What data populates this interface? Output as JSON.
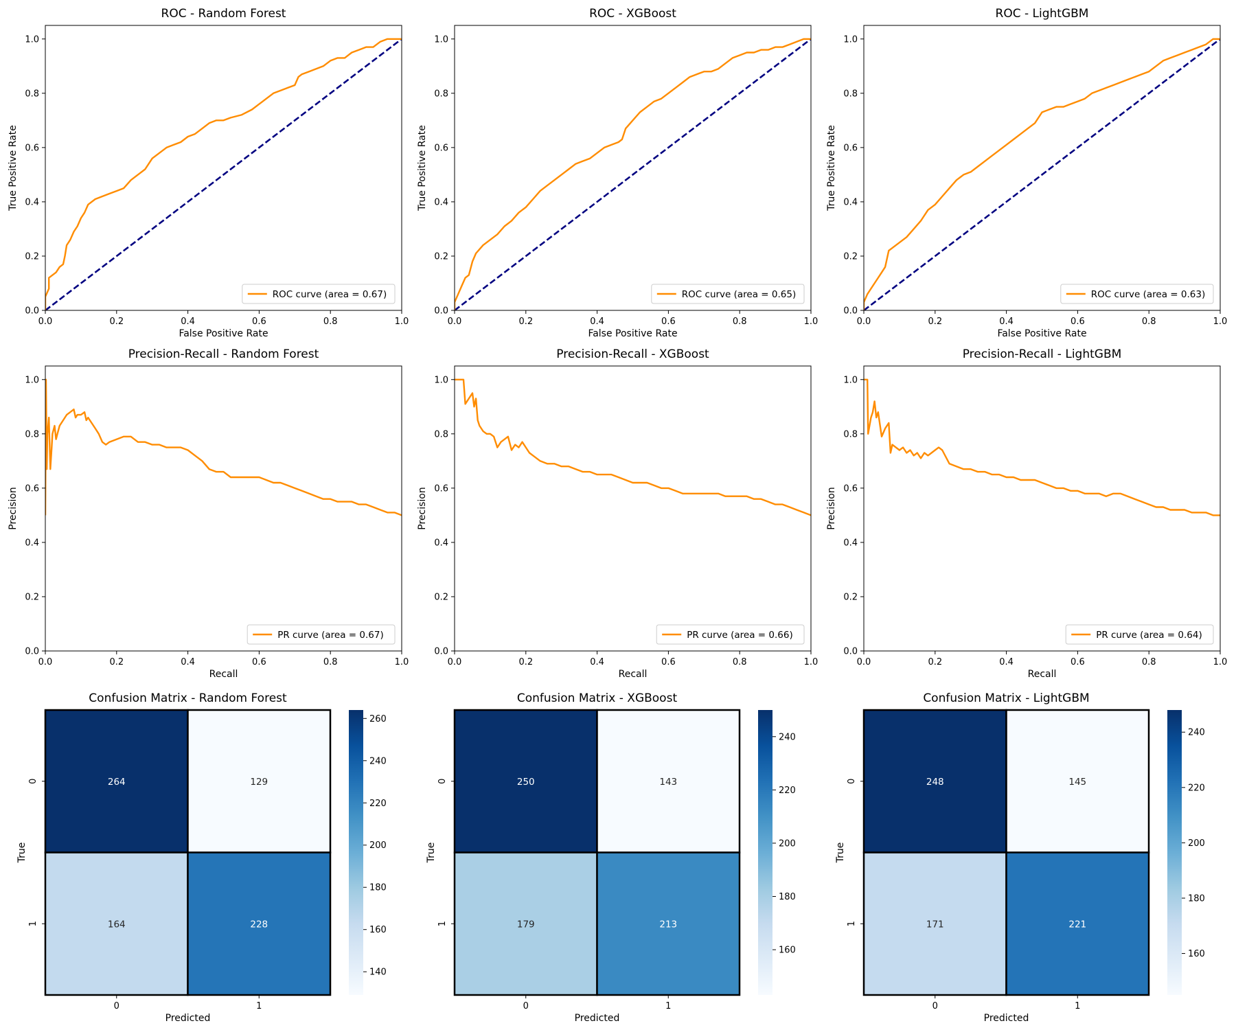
{
  "colors": {
    "curve": "#ff8c00",
    "diagonal": "#000080",
    "cmap": [
      "#f7fbff",
      "#deebf7",
      "#c6dbef",
      "#9ecae1",
      "#6baed6",
      "#4292c6",
      "#2171b5",
      "#08519c",
      "#08306b"
    ],
    "dark_text": "#262626",
    "light_text": "#ffffff"
  },
  "chart_data": [
    {
      "type": "line",
      "title": "ROC - Random Forest",
      "xlabel": "False Positive Rate",
      "ylabel": "True Positive Rate",
      "xlim": [
        0,
        1
      ],
      "ylim": [
        0,
        1.05
      ],
      "xticks": [
        "0.0",
        "0.2",
        "0.4",
        "0.6",
        "0.8",
        "1.0"
      ],
      "yticks": [
        "0.0",
        "0.2",
        "0.4",
        "0.6",
        "0.8",
        "1.0"
      ],
      "legend": "ROC curve (area = 0.67)",
      "legend_loc": "lower-right",
      "diagonal": true,
      "series": [
        {
          "x": [
            0,
            0,
            0.01,
            0.01,
            0.03,
            0.04,
            0.05,
            0.055,
            0.06,
            0.07,
            0.08,
            0.09,
            0.1,
            0.11,
            0.12,
            0.14,
            0.16,
            0.18,
            0.2,
            0.22,
            0.24,
            0.25,
            0.26,
            0.28,
            0.3,
            0.32,
            0.34,
            0.36,
            0.38,
            0.4,
            0.42,
            0.44,
            0.46,
            0.48,
            0.5,
            0.52,
            0.55,
            0.58,
            0.6,
            0.62,
            0.64,
            0.66,
            0.68,
            0.7,
            0.71,
            0.72,
            0.74,
            0.76,
            0.78,
            0.8,
            0.82,
            0.84,
            0.86,
            0.88,
            0.9,
            0.92,
            0.94,
            0.96,
            0.98,
            1.0
          ],
          "y": [
            0,
            0.05,
            0.08,
            0.12,
            0.14,
            0.16,
            0.17,
            0.2,
            0.24,
            0.26,
            0.29,
            0.31,
            0.34,
            0.36,
            0.39,
            0.41,
            0.42,
            0.43,
            0.44,
            0.45,
            0.48,
            0.49,
            0.5,
            0.52,
            0.56,
            0.58,
            0.6,
            0.61,
            0.62,
            0.64,
            0.65,
            0.67,
            0.69,
            0.7,
            0.7,
            0.71,
            0.72,
            0.74,
            0.76,
            0.78,
            0.8,
            0.81,
            0.82,
            0.83,
            0.86,
            0.87,
            0.88,
            0.89,
            0.9,
            0.92,
            0.93,
            0.93,
            0.95,
            0.96,
            0.97,
            0.97,
            0.99,
            1.0,
            1.0,
            1.0
          ]
        }
      ]
    },
    {
      "type": "line",
      "title": "ROC - XGBoost",
      "xlabel": "False Positive Rate",
      "ylabel": "True Positive Rate",
      "xlim": [
        0,
        1
      ],
      "ylim": [
        0,
        1.05
      ],
      "xticks": [
        "0.0",
        "0.2",
        "0.4",
        "0.6",
        "0.8",
        "1.0"
      ],
      "yticks": [
        "0.0",
        "0.2",
        "0.4",
        "0.6",
        "0.8",
        "1.0"
      ],
      "legend": "ROC curve (area = 0.65)",
      "legend_loc": "lower-right",
      "diagonal": true,
      "series": [
        {
          "x": [
            0,
            0,
            0.01,
            0.02,
            0.03,
            0.04,
            0.05,
            0.06,
            0.08,
            0.1,
            0.12,
            0.14,
            0.16,
            0.18,
            0.2,
            0.22,
            0.24,
            0.26,
            0.28,
            0.3,
            0.32,
            0.34,
            0.36,
            0.38,
            0.4,
            0.42,
            0.44,
            0.46,
            0.47,
            0.48,
            0.5,
            0.52,
            0.54,
            0.56,
            0.58,
            0.6,
            0.62,
            0.64,
            0.66,
            0.68,
            0.7,
            0.72,
            0.74,
            0.76,
            0.78,
            0.8,
            0.82,
            0.84,
            0.86,
            0.88,
            0.9,
            0.92,
            0.94,
            0.96,
            0.98,
            1.0
          ],
          "y": [
            0,
            0.03,
            0.06,
            0.09,
            0.12,
            0.13,
            0.18,
            0.21,
            0.24,
            0.26,
            0.28,
            0.31,
            0.33,
            0.36,
            0.38,
            0.41,
            0.44,
            0.46,
            0.48,
            0.5,
            0.52,
            0.54,
            0.55,
            0.56,
            0.58,
            0.6,
            0.61,
            0.62,
            0.63,
            0.67,
            0.7,
            0.73,
            0.75,
            0.77,
            0.78,
            0.8,
            0.82,
            0.84,
            0.86,
            0.87,
            0.88,
            0.88,
            0.89,
            0.91,
            0.93,
            0.94,
            0.95,
            0.95,
            0.96,
            0.96,
            0.97,
            0.97,
            0.98,
            0.99,
            1.0,
            1.0
          ]
        }
      ]
    },
    {
      "type": "line",
      "title": "ROC - LightGBM",
      "xlabel": "False Positive Rate",
      "ylabel": "True Positive Rate",
      "xlim": [
        0,
        1
      ],
      "ylim": [
        0,
        1.05
      ],
      "xticks": [
        "0.0",
        "0.2",
        "0.4",
        "0.6",
        "0.8",
        "1.0"
      ],
      "yticks": [
        "0.0",
        "0.2",
        "0.4",
        "0.6",
        "0.8",
        "1.0"
      ],
      "legend": "ROC curve (area = 0.63)",
      "legend_loc": "lower-right",
      "diagonal": true,
      "series": [
        {
          "x": [
            0,
            0,
            0.01,
            0.02,
            0.03,
            0.04,
            0.05,
            0.06,
            0.07,
            0.08,
            0.1,
            0.12,
            0.14,
            0.16,
            0.18,
            0.2,
            0.22,
            0.24,
            0.26,
            0.28,
            0.3,
            0.32,
            0.34,
            0.36,
            0.38,
            0.4,
            0.42,
            0.44,
            0.46,
            0.48,
            0.5,
            0.52,
            0.54,
            0.56,
            0.58,
            0.6,
            0.62,
            0.64,
            0.66,
            0.68,
            0.7,
            0.72,
            0.74,
            0.76,
            0.78,
            0.8,
            0.82,
            0.84,
            0.86,
            0.88,
            0.9,
            0.92,
            0.94,
            0.96,
            0.98,
            1.0
          ],
          "y": [
            0,
            0.03,
            0.06,
            0.08,
            0.1,
            0.12,
            0.14,
            0.16,
            0.22,
            0.23,
            0.25,
            0.27,
            0.3,
            0.33,
            0.37,
            0.39,
            0.42,
            0.45,
            0.48,
            0.5,
            0.51,
            0.53,
            0.55,
            0.57,
            0.59,
            0.61,
            0.63,
            0.65,
            0.67,
            0.69,
            0.73,
            0.74,
            0.75,
            0.75,
            0.76,
            0.77,
            0.78,
            0.8,
            0.81,
            0.82,
            0.83,
            0.84,
            0.85,
            0.86,
            0.87,
            0.88,
            0.9,
            0.92,
            0.93,
            0.94,
            0.95,
            0.96,
            0.97,
            0.98,
            1.0,
            1.0
          ]
        }
      ]
    },
    {
      "type": "line",
      "title": "Precision-Recall - Random Forest",
      "xlabel": "Recall",
      "ylabel": "Precision",
      "xlim": [
        0,
        1
      ],
      "ylim": [
        0,
        1.05
      ],
      "xticks": [
        "0.0",
        "0.2",
        "0.4",
        "0.6",
        "0.8",
        "1.0"
      ],
      "yticks": [
        "0.0",
        "0.2",
        "0.4",
        "0.6",
        "0.8",
        "1.0"
      ],
      "legend": "PR curve (area = 0.67)",
      "legend_loc": "lower-right",
      "diagonal": false,
      "series": [
        {
          "x": [
            0,
            0.002,
            0.004,
            0.006,
            0.01,
            0.014,
            0.018,
            0.02,
            0.026,
            0.03,
            0.034,
            0.04,
            0.05,
            0.06,
            0.07,
            0.08,
            0.085,
            0.09,
            0.1,
            0.11,
            0.115,
            0.12,
            0.13,
            0.14,
            0.15,
            0.16,
            0.17,
            0.18,
            0.2,
            0.22,
            0.24,
            0.26,
            0.28,
            0.3,
            0.32,
            0.34,
            0.36,
            0.38,
            0.4,
            0.42,
            0.44,
            0.46,
            0.48,
            0.5,
            0.52,
            0.54,
            0.56,
            0.58,
            0.6,
            0.62,
            0.64,
            0.66,
            0.68,
            0.7,
            0.72,
            0.74,
            0.76,
            0.78,
            0.8,
            0.82,
            0.84,
            0.86,
            0.88,
            0.9,
            0.92,
            0.94,
            0.96,
            0.98,
            1.0
          ],
          "y": [
            0.5,
            1.0,
            0.67,
            0.8,
            0.86,
            0.67,
            0.75,
            0.8,
            0.83,
            0.78,
            0.8,
            0.83,
            0.85,
            0.87,
            0.88,
            0.89,
            0.86,
            0.87,
            0.87,
            0.88,
            0.85,
            0.86,
            0.84,
            0.82,
            0.8,
            0.77,
            0.76,
            0.77,
            0.78,
            0.79,
            0.79,
            0.77,
            0.77,
            0.76,
            0.76,
            0.75,
            0.75,
            0.75,
            0.74,
            0.72,
            0.7,
            0.67,
            0.66,
            0.66,
            0.64,
            0.64,
            0.64,
            0.64,
            0.64,
            0.63,
            0.62,
            0.62,
            0.61,
            0.6,
            0.59,
            0.58,
            0.57,
            0.56,
            0.56,
            0.55,
            0.55,
            0.55,
            0.54,
            0.54,
            0.53,
            0.52,
            0.51,
            0.51,
            0.5
          ]
        }
      ]
    },
    {
      "type": "line",
      "title": "Precision-Recall - XGBoost",
      "xlabel": "Recall",
      "ylabel": "Precision",
      "xlim": [
        0,
        1
      ],
      "ylim": [
        0,
        1.05
      ],
      "xticks": [
        "0.0",
        "0.2",
        "0.4",
        "0.6",
        "0.8",
        "1.0"
      ],
      "yticks": [
        "0.0",
        "0.2",
        "0.4",
        "0.6",
        "0.8",
        "1.0"
      ],
      "legend": "PR curve (area = 0.66)",
      "legend_loc": "lower-right",
      "diagonal": false,
      "series": [
        {
          "x": [
            0,
            0.025,
            0.03,
            0.04,
            0.05,
            0.055,
            0.06,
            0.065,
            0.07,
            0.08,
            0.09,
            0.1,
            0.11,
            0.12,
            0.13,
            0.15,
            0.16,
            0.17,
            0.18,
            0.19,
            0.2,
            0.21,
            0.22,
            0.24,
            0.26,
            0.28,
            0.3,
            0.32,
            0.34,
            0.36,
            0.38,
            0.4,
            0.42,
            0.44,
            0.46,
            0.48,
            0.5,
            0.52,
            0.54,
            0.56,
            0.58,
            0.6,
            0.62,
            0.64,
            0.66,
            0.68,
            0.7,
            0.72,
            0.74,
            0.76,
            0.78,
            0.8,
            0.82,
            0.84,
            0.86,
            0.88,
            0.9,
            0.92,
            0.94,
            0.96,
            0.98,
            1.0
          ],
          "y": [
            1.0,
            1.0,
            0.91,
            0.93,
            0.95,
            0.9,
            0.93,
            0.85,
            0.83,
            0.81,
            0.8,
            0.8,
            0.79,
            0.75,
            0.77,
            0.79,
            0.74,
            0.76,
            0.75,
            0.77,
            0.75,
            0.73,
            0.72,
            0.7,
            0.69,
            0.69,
            0.68,
            0.68,
            0.67,
            0.66,
            0.66,
            0.65,
            0.65,
            0.65,
            0.64,
            0.63,
            0.62,
            0.62,
            0.62,
            0.61,
            0.6,
            0.6,
            0.59,
            0.58,
            0.58,
            0.58,
            0.58,
            0.58,
            0.58,
            0.57,
            0.57,
            0.57,
            0.57,
            0.56,
            0.56,
            0.55,
            0.54,
            0.54,
            0.53,
            0.52,
            0.51,
            0.5
          ]
        }
      ]
    },
    {
      "type": "line",
      "title": "Precision-Recall - LightGBM",
      "xlabel": "Recall",
      "ylabel": "Precision",
      "xlim": [
        0,
        1
      ],
      "ylim": [
        0,
        1.05
      ],
      "xticks": [
        "0.0",
        "0.2",
        "0.4",
        "0.6",
        "0.8",
        "1.0"
      ],
      "yticks": [
        "0.0",
        "0.2",
        "0.4",
        "0.6",
        "0.8",
        "1.0"
      ],
      "legend": "PR curve (area = 0.64)",
      "legend_loc": "lower-right",
      "diagonal": false,
      "series": [
        {
          "x": [
            0,
            0.01,
            0.012,
            0.016,
            0.02,
            0.025,
            0.03,
            0.035,
            0.04,
            0.05,
            0.06,
            0.07,
            0.075,
            0.08,
            0.09,
            0.1,
            0.11,
            0.12,
            0.13,
            0.14,
            0.15,
            0.16,
            0.17,
            0.18,
            0.19,
            0.2,
            0.21,
            0.22,
            0.24,
            0.26,
            0.28,
            0.3,
            0.32,
            0.34,
            0.36,
            0.38,
            0.4,
            0.42,
            0.44,
            0.46,
            0.48,
            0.5,
            0.52,
            0.54,
            0.56,
            0.58,
            0.6,
            0.62,
            0.64,
            0.66,
            0.68,
            0.7,
            0.72,
            0.74,
            0.76,
            0.78,
            0.8,
            0.82,
            0.84,
            0.86,
            0.88,
            0.9,
            0.92,
            0.94,
            0.96,
            0.98,
            1.0
          ],
          "y": [
            1.0,
            1.0,
            0.8,
            0.83,
            0.86,
            0.88,
            0.92,
            0.86,
            0.88,
            0.79,
            0.82,
            0.84,
            0.73,
            0.76,
            0.75,
            0.74,
            0.75,
            0.73,
            0.74,
            0.72,
            0.73,
            0.71,
            0.73,
            0.72,
            0.73,
            0.74,
            0.75,
            0.74,
            0.69,
            0.68,
            0.67,
            0.67,
            0.66,
            0.66,
            0.65,
            0.65,
            0.64,
            0.64,
            0.63,
            0.63,
            0.63,
            0.62,
            0.61,
            0.6,
            0.6,
            0.59,
            0.59,
            0.58,
            0.58,
            0.58,
            0.57,
            0.58,
            0.58,
            0.57,
            0.56,
            0.55,
            0.54,
            0.53,
            0.53,
            0.52,
            0.52,
            0.52,
            0.51,
            0.51,
            0.51,
            0.5,
            0.5
          ]
        }
      ]
    },
    {
      "type": "heatmap",
      "title": "Confusion Matrix - Random Forest",
      "xlabel": "Predicted",
      "ylabel": "True",
      "xticks": [
        "0",
        "1"
      ],
      "yticks": [
        "0",
        "1"
      ],
      "values": [
        [
          264,
          129
        ],
        [
          164,
          228
        ]
      ],
      "colorbar_ticks": [
        140,
        160,
        180,
        200,
        220,
        240,
        260
      ]
    },
    {
      "type": "heatmap",
      "title": "Confusion Matrix - XGBoost",
      "xlabel": "Predicted",
      "ylabel": "True",
      "xticks": [
        "0",
        "1"
      ],
      "yticks": [
        "0",
        "1"
      ],
      "values": [
        [
          250,
          143
        ],
        [
          179,
          213
        ]
      ],
      "colorbar_ticks": [
        160,
        180,
        200,
        220,
        240
      ]
    },
    {
      "type": "heatmap",
      "title": "Confusion Matrix - LightGBM",
      "xlabel": "Predicted",
      "ylabel": "True",
      "xticks": [
        "0",
        "1"
      ],
      "yticks": [
        "0",
        "1"
      ],
      "values": [
        [
          248,
          145
        ],
        [
          171,
          221
        ]
      ],
      "colorbar_ticks": [
        160,
        180,
        200,
        220,
        240
      ]
    }
  ]
}
